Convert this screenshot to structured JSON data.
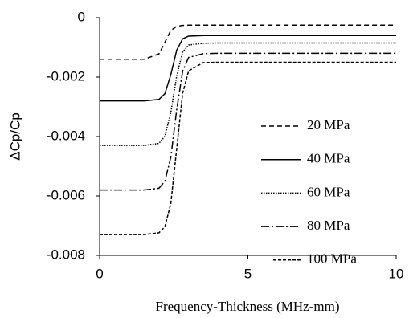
{
  "chart_data": {
    "type": "line",
    "x_label": "Frequency-Thickness (MHz-mm)",
    "y_label": "ΔCp/Cp",
    "x": [
      0,
      1,
      1.5,
      2,
      2.2,
      2.4,
      2.6,
      2.8,
      3,
      3.5,
      4,
      5,
      6,
      7,
      8,
      9,
      10
    ],
    "series": [
      {
        "name": "20 MPa",
        "color": "#000000",
        "dash": "6,4",
        "values": [
          -0.0014,
          -0.0014,
          -0.0014,
          -0.00122,
          -0.00083,
          -0.00043,
          -0.00029,
          -0.00026,
          -0.00025,
          -0.00025,
          -0.00025,
          -0.00025,
          -0.00025,
          -0.00025,
          -0.00025,
          -0.00025,
          -0.00025
        ]
      },
      {
        "name": "40 MPa",
        "color": "#000000",
        "dash": "none",
        "values": [
          -0.0028,
          -0.0028,
          -0.0028,
          -0.00275,
          -0.00256,
          -0.00192,
          -0.00109,
          -0.00071,
          -0.00062,
          -0.0006,
          -0.0006,
          -0.0006,
          -0.0006,
          -0.0006,
          -0.0006,
          -0.0006,
          -0.0006
        ]
      },
      {
        "name": "60 MPa",
        "color": "#000000",
        "dash": "1.5,1.5",
        "values": [
          -0.0043,
          -0.0043,
          -0.0043,
          -0.00423,
          -0.00399,
          -0.0032,
          -0.00195,
          -0.00116,
          -0.00092,
          -0.00086,
          -0.00085,
          -0.00085,
          -0.00085,
          -0.00085,
          -0.00085,
          -0.00085,
          -0.00085
        ]
      },
      {
        "name": "80 MPa",
        "color": "#000000",
        "dash": "10,3,2,3",
        "values": [
          -0.0058,
          -0.0058,
          -0.0058,
          -0.00574,
          -0.00551,
          -0.0047,
          -0.00309,
          -0.0018,
          -0.00134,
          -0.00121,
          -0.0012,
          -0.0012,
          -0.0012,
          -0.0012,
          -0.0012,
          -0.0012,
          -0.0012
        ]
      },
      {
        "name": "100 MPa",
        "color": "#000000",
        "dash": "4,2",
        "values": [
          -0.0073,
          -0.0073,
          -0.0073,
          -0.00724,
          -0.00704,
          -0.00626,
          -0.0044,
          -0.00254,
          -0.00179,
          -0.00151,
          -0.0015,
          -0.0015,
          -0.0015,
          -0.0015,
          -0.0015,
          -0.0015,
          -0.0015
        ]
      }
    ],
    "xlim": [
      0,
      10
    ],
    "xticks": [
      0,
      5,
      10
    ],
    "ylim": [
      -0.008,
      0
    ],
    "yticks": [
      -0.008,
      -0.006,
      -0.004,
      -0.002,
      0
    ],
    "grid": false
  }
}
